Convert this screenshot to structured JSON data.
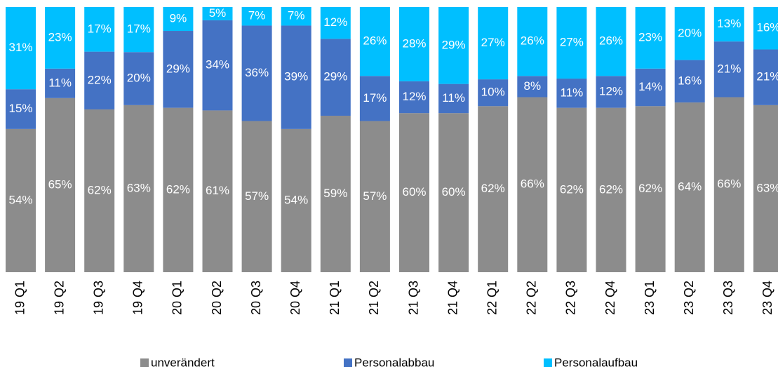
{
  "chart_data": {
    "type": "bar",
    "stacked": "percent",
    "categories": [
      "19 Q1",
      "19 Q2",
      "19 Q3",
      "19 Q4",
      "20 Q1",
      "20 Q2",
      "20 Q3",
      "20 Q4",
      "21 Q1",
      "21 Q2",
      "21 Q3",
      "21 Q4",
      "22 Q1",
      "22 Q2",
      "22 Q3",
      "22 Q4",
      "23 Q1",
      "23 Q2",
      "23 Q3",
      "23 Q4"
    ],
    "series": [
      {
        "name": "unverändert",
        "color": "#8c8c8c",
        "values": [
          54,
          65,
          62,
          63,
          62,
          61,
          57,
          54,
          59,
          57,
          60,
          60,
          62,
          66,
          62,
          62,
          62,
          64,
          66,
          63
        ],
        "value_labels": [
          "54%",
          "65%",
          "62%",
          "63%",
          "62%",
          "61%",
          "57%",
          "54%",
          "59%",
          "57%",
          "60%",
          "60%",
          "62%",
          "66%",
          "62%",
          "62%",
          "62%",
          "64%",
          "66%",
          "63%"
        ]
      },
      {
        "name": "Personalabbau",
        "color": "#4472c4",
        "values": [
          15,
          11,
          22,
          20,
          29,
          34,
          36,
          39,
          29,
          17,
          12,
          11,
          10,
          8,
          11,
          12,
          14,
          16,
          21,
          21
        ],
        "value_labels": [
          "15%",
          "11%",
          "22%",
          "20%",
          "29%",
          "34%",
          "36%",
          "39%",
          "29%",
          "17%",
          "12%",
          "11%",
          "10%",
          "8%",
          "11%",
          "12%",
          "14%",
          "16%",
          "21%",
          "21%"
        ]
      },
      {
        "name": "Personalaufbau",
        "color": "#00bfff",
        "values": [
          31,
          23,
          17,
          17,
          9,
          5,
          7,
          7,
          12,
          26,
          28,
          29,
          27,
          26,
          27,
          26,
          23,
          20,
          13,
          16
        ],
        "value_labels": [
          "31%",
          "23%",
          "17%",
          "17%",
          "9%",
          "5%",
          "7%",
          "7%",
          "12%",
          "26%",
          "28%",
          "29%",
          "27%",
          "26%",
          "27%",
          "26%",
          "23%",
          "20%",
          "13%",
          "16%"
        ]
      }
    ],
    "legend": "bottom"
  }
}
